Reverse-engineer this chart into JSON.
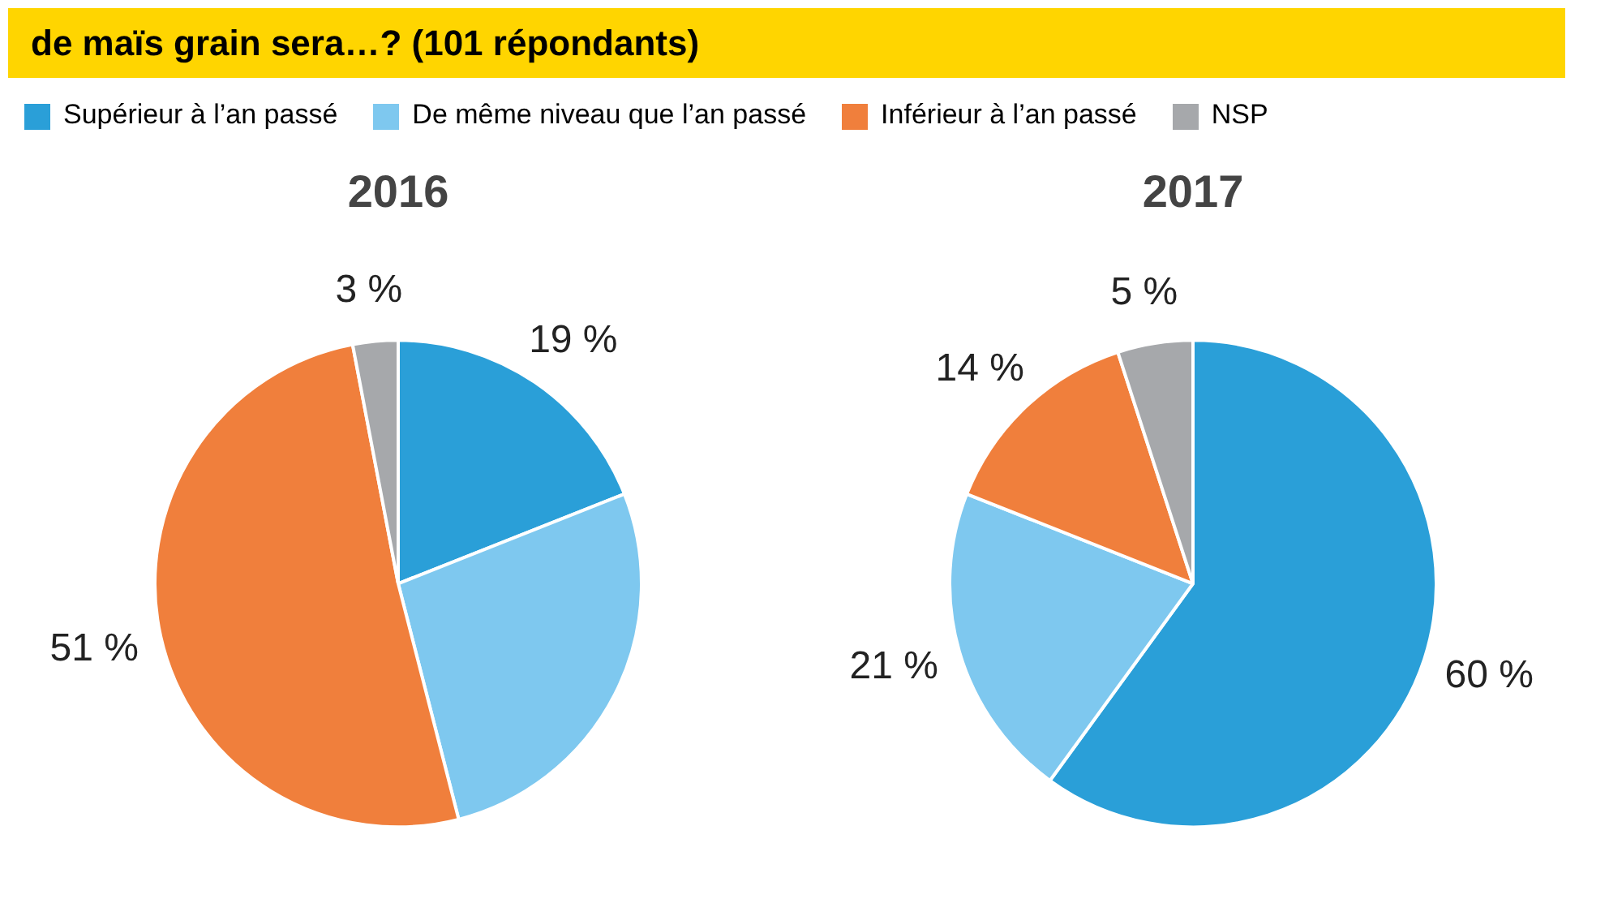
{
  "chart_data": [
    {
      "type": "pie",
      "title": "2016",
      "subtitle": "de maïs grain sera…? (101 répondants)",
      "categories": [
        "Supérieur à l’an passé",
        "De même niveau que l’an passé",
        "Inférieur à l’an passé",
        "NSP"
      ],
      "values": [
        19,
        27,
        51,
        3
      ],
      "colors": [
        "#2a9fd8",
        "#7ec8ef",
        "#f07f3c",
        "#a6a8ab"
      ],
      "value_labels": [
        "19 %",
        null,
        "51 %",
        "3 %"
      ],
      "legend": "top"
    },
    {
      "type": "pie",
      "title": "2017",
      "categories": [
        null,
        null,
        null,
        null
      ],
      "values": [
        60,
        21,
        14,
        5
      ],
      "colors": [
        "#2a9fd8",
        "#7ec8ef",
        "#f07f3c",
        "#a6a8ab"
      ],
      "value_labels": [
        "60 %",
        "21 %",
        "14 %",
        "5 %"
      ]
    }
  ]
}
